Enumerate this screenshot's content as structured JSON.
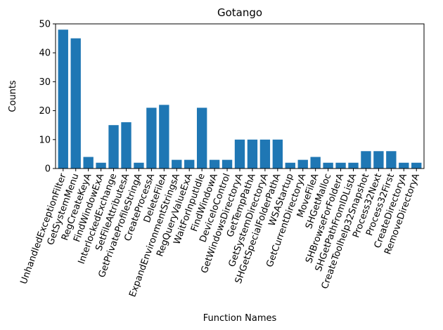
{
  "chart_data": {
    "type": "bar",
    "title": "Gotango",
    "xlabel": "Function Names",
    "ylabel": "Counts",
    "ylim": [
      0,
      50
    ],
    "yticks": [
      0,
      10,
      20,
      30,
      40,
      50
    ],
    "bar_color": "#1f77b4",
    "grid": false,
    "categories": [
      "UnhandledExceptionFilter",
      "GetSystemMenu",
      "RegCreateKeyA",
      "FindWindowExA",
      "InterlockedExchange",
      "SetFileAttributesA",
      "GetPrivateProfileStringA",
      "CreateProcessA",
      "DeleteFileA",
      "ExpandEnvironmentStringsA",
      "RegQueryValueExA",
      "WaitForInputIdle",
      "FindWindowA",
      "DeviceIoControl",
      "GetWindowsDirectoryA",
      "GetTempPathA",
      "GetSystemDirectoryA",
      "SHGetSpecialFolderPathA",
      "WSAStartup",
      "GetCurrentDirectoryA",
      "MoveFileA",
      "SHGetMalloc",
      "SHBrowseForFolderA",
      "SHGetPathFromIDListA",
      "CreateToolhelp32Snapshot",
      "Process32Next",
      "Process32First",
      "CreateDirectoryA",
      "RemoveDirectoryA"
    ],
    "values": [
      48,
      45,
      4,
      2,
      15,
      16,
      2,
      21,
      22,
      3,
      3,
      21,
      3,
      3,
      10,
      10,
      10,
      10,
      2,
      3,
      4,
      2,
      2,
      2,
      6,
      6,
      6,
      2,
      2
    ]
  }
}
